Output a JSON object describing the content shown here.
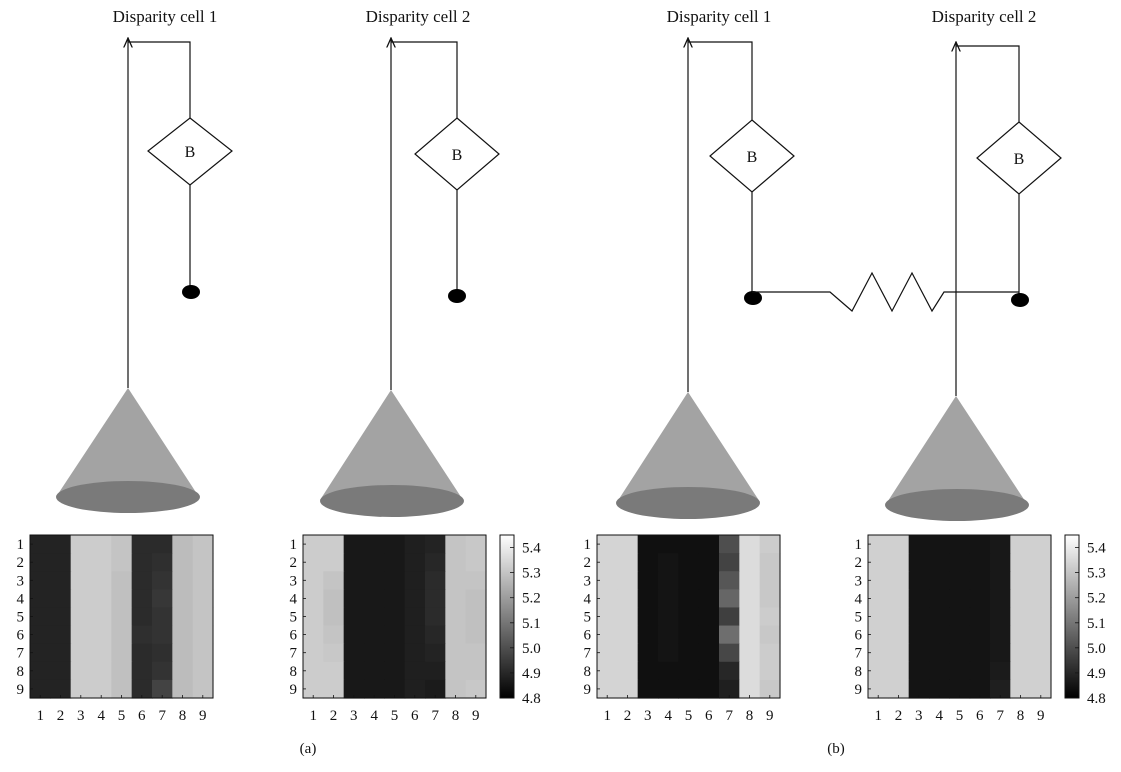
{
  "panels": [
    {
      "label": "(a)",
      "cells": [
        {
          "title": "Disparity cell 1",
          "box": "B",
          "coupled": false
        },
        {
          "title": "Disparity cell 2",
          "box": "B",
          "coupled": false
        }
      ]
    },
    {
      "label": "(b)",
      "cells": [
        {
          "title": "Disparity cell 1",
          "box": "B",
          "coupled": true
        },
        {
          "title": "Disparity cell 2",
          "box": "B",
          "coupled": true
        }
      ]
    }
  ],
  "chart_data": [
    {
      "type": "heatmap",
      "rows": [
        "1",
        "2",
        "3",
        "4",
        "5",
        "6",
        "7",
        "8",
        "9"
      ],
      "columns": [
        "1",
        "2",
        "3",
        "4",
        "5",
        "6",
        "7",
        "8",
        "9"
      ],
      "values": [
        [
          4.89,
          4.89,
          5.32,
          5.32,
          5.3,
          4.91,
          4.91,
          5.28,
          5.3
        ],
        [
          4.89,
          4.89,
          5.32,
          5.32,
          5.3,
          4.91,
          4.92,
          5.28,
          5.3
        ],
        [
          4.89,
          4.89,
          5.32,
          5.32,
          5.29,
          4.91,
          4.93,
          5.28,
          5.3
        ],
        [
          4.89,
          4.89,
          5.32,
          5.32,
          5.29,
          4.91,
          4.94,
          5.28,
          5.3
        ],
        [
          4.89,
          4.89,
          5.32,
          5.32,
          5.29,
          4.91,
          4.93,
          5.28,
          5.3
        ],
        [
          4.89,
          4.89,
          5.32,
          5.32,
          5.29,
          4.92,
          4.93,
          5.28,
          5.3
        ],
        [
          4.89,
          4.89,
          5.32,
          5.32,
          5.29,
          4.91,
          4.92,
          5.28,
          5.3
        ],
        [
          4.89,
          4.89,
          5.32,
          5.32,
          5.29,
          4.91,
          4.93,
          5.28,
          5.3
        ],
        [
          4.89,
          4.89,
          5.32,
          5.32,
          5.29,
          4.91,
          4.97,
          5.28,
          5.3
        ]
      ]
    },
    {
      "type": "heatmap",
      "rows": [
        "1",
        "2",
        "3",
        "4",
        "5",
        "6",
        "7",
        "8",
        "9"
      ],
      "columns": [
        "1",
        "2",
        "3",
        "4",
        "5",
        "6",
        "7",
        "8",
        "9"
      ],
      "colorbar": {
        "ticks": [
          "5.4",
          "5.3",
          "5.2",
          "5.1",
          "5.0",
          "4.9",
          "4.8"
        ],
        "min": 4.8,
        "max": 5.45
      },
      "values": [
        [
          5.32,
          5.32,
          4.86,
          4.86,
          4.86,
          4.88,
          4.89,
          5.3,
          5.31
        ],
        [
          5.32,
          5.32,
          4.86,
          4.86,
          4.86,
          4.88,
          4.9,
          5.3,
          5.31
        ],
        [
          5.32,
          5.3,
          4.86,
          4.86,
          4.86,
          4.88,
          4.91,
          5.3,
          5.3
        ],
        [
          5.32,
          5.29,
          4.86,
          4.86,
          4.86,
          4.88,
          4.91,
          5.3,
          5.29
        ],
        [
          5.32,
          5.29,
          4.86,
          4.86,
          4.86,
          4.88,
          4.91,
          5.3,
          5.29
        ],
        [
          5.32,
          5.3,
          4.86,
          4.86,
          4.86,
          4.88,
          4.9,
          5.3,
          5.29
        ],
        [
          5.32,
          5.31,
          4.86,
          4.86,
          4.86,
          4.88,
          4.89,
          5.3,
          5.3
        ],
        [
          5.32,
          5.32,
          4.86,
          4.86,
          4.86,
          4.88,
          4.88,
          5.3,
          5.3
        ],
        [
          5.32,
          5.32,
          4.86,
          4.86,
          4.86,
          4.88,
          4.87,
          5.3,
          5.31
        ]
      ]
    },
    {
      "type": "heatmap",
      "rows": [
        "1",
        "2",
        "3",
        "4",
        "5",
        "6",
        "7",
        "8",
        "9"
      ],
      "columns": [
        "1",
        "2",
        "3",
        "4",
        "5",
        "6",
        "7",
        "8",
        "9"
      ],
      "values": [
        [
          5.34,
          5.34,
          4.84,
          4.84,
          4.84,
          4.84,
          5.0,
          5.36,
          5.32
        ],
        [
          5.34,
          5.34,
          4.84,
          4.85,
          4.84,
          4.84,
          4.97,
          5.36,
          5.31
        ],
        [
          5.34,
          5.34,
          4.84,
          4.85,
          4.84,
          4.84,
          5.02,
          5.36,
          5.31
        ],
        [
          5.34,
          5.34,
          4.84,
          4.85,
          4.84,
          4.84,
          5.06,
          5.36,
          5.31
        ],
        [
          5.34,
          5.34,
          4.84,
          4.85,
          4.84,
          4.84,
          4.96,
          5.36,
          5.32
        ],
        [
          5.34,
          5.34,
          4.84,
          4.85,
          4.84,
          4.84,
          5.08,
          5.36,
          5.31
        ],
        [
          5.34,
          5.34,
          4.84,
          4.85,
          4.84,
          4.84,
          4.98,
          5.36,
          5.32
        ],
        [
          5.34,
          5.34,
          4.84,
          4.84,
          4.84,
          4.84,
          4.9,
          5.36,
          5.32
        ],
        [
          5.34,
          5.34,
          4.84,
          4.84,
          4.84,
          4.84,
          4.88,
          5.36,
          5.31
        ]
      ]
    },
    {
      "type": "heatmap",
      "rows": [
        "1",
        "2",
        "3",
        "4",
        "5",
        "6",
        "7",
        "8",
        "9"
      ],
      "columns": [
        "1",
        "2",
        "3",
        "4",
        "5",
        "6",
        "7",
        "8",
        "9"
      ],
      "colorbar": {
        "ticks": [
          "5.4",
          "5.3",
          "5.2",
          "5.1",
          "5.0",
          "4.9",
          "4.8"
        ],
        "min": 4.8,
        "max": 5.45
      },
      "values": [
        [
          5.33,
          5.33,
          4.85,
          4.85,
          4.85,
          4.85,
          4.86,
          5.33,
          5.33
        ],
        [
          5.33,
          5.33,
          4.85,
          4.85,
          4.85,
          4.85,
          4.86,
          5.33,
          5.33
        ],
        [
          5.33,
          5.33,
          4.85,
          4.85,
          4.85,
          4.85,
          4.86,
          5.33,
          5.33
        ],
        [
          5.33,
          5.33,
          4.85,
          4.85,
          4.85,
          4.85,
          4.86,
          5.33,
          5.33
        ],
        [
          5.33,
          5.33,
          4.85,
          4.85,
          4.85,
          4.85,
          4.86,
          5.33,
          5.33
        ],
        [
          5.33,
          5.33,
          4.85,
          4.85,
          4.85,
          4.85,
          4.86,
          5.33,
          5.33
        ],
        [
          5.33,
          5.33,
          4.85,
          4.85,
          4.85,
          4.85,
          4.86,
          5.33,
          5.33
        ],
        [
          5.33,
          5.33,
          4.85,
          4.85,
          4.85,
          4.85,
          4.87,
          5.33,
          5.33
        ],
        [
          5.33,
          5.33,
          4.85,
          4.85,
          4.85,
          4.85,
          4.88,
          5.33,
          5.33
        ]
      ]
    }
  ]
}
